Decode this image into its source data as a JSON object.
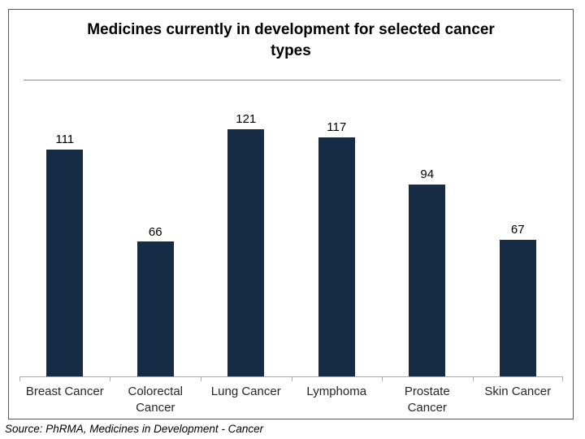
{
  "title_display": "Medicines currently in development for selected cancer\ntypes",
  "source_note": "Source: PhRMA, Medicines in Development - Cancer",
  "colors": {
    "bar": "#152C44",
    "axis": "#ababab",
    "box_border": "#595959",
    "divider": "#8c8c8c",
    "value_text": "#000000",
    "category_text": "#262626"
  },
  "chart_data": {
    "type": "bar",
    "title": "Medicines currently in development for selected cancer types",
    "categories": [
      "Breast Cancer",
      "Colorectal Cancer",
      "Lung Cancer",
      "Lymphoma",
      "Prostate Cancer",
      "Skin Cancer"
    ],
    "values": [
      111,
      66,
      121,
      117,
      94,
      67
    ],
    "xlabel": "",
    "ylabel": "",
    "ylim": [
      0,
      140
    ],
    "grid": false,
    "legend": false,
    "data_labels": true,
    "y_axis_visible": false,
    "source": "Source: PhRMA, Medicines in Development - Cancer"
  }
}
